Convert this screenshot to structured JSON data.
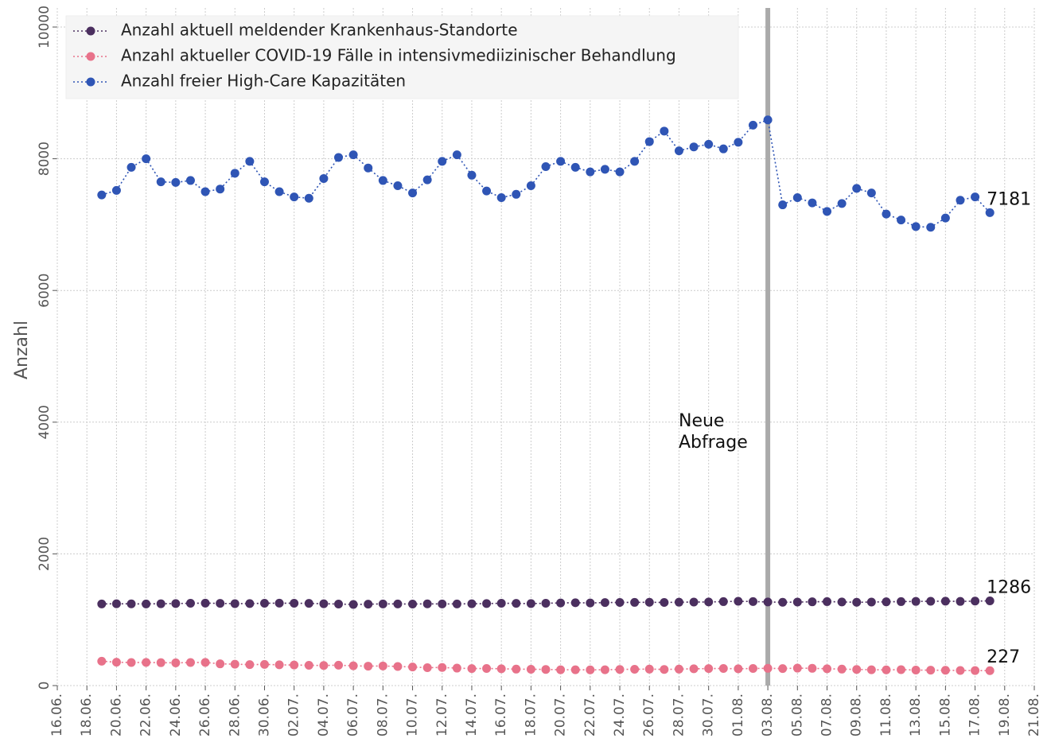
{
  "chart_data": {
    "type": "line",
    "ylabel": "Anzahl",
    "x": [
      "19.06.",
      "20.06.",
      "21.06.",
      "22.06.",
      "23.06.",
      "24.06.",
      "25.06.",
      "26.06.",
      "27.06.",
      "28.06.",
      "29.06.",
      "30.06.",
      "01.07.",
      "02.07.",
      "03.07.",
      "04.07.",
      "05.07.",
      "06.07.",
      "07.07.",
      "08.07.",
      "09.07.",
      "10.07.",
      "11.07.",
      "12.07.",
      "13.07.",
      "14.07.",
      "15.07.",
      "16.07.",
      "17.07.",
      "18.07.",
      "19.07.",
      "20.07.",
      "21.07.",
      "22.07.",
      "23.07.",
      "24.07.",
      "25.07.",
      "26.07.",
      "27.07.",
      "28.07.",
      "29.07.",
      "30.07.",
      "31.07.",
      "01.08.",
      "02.08.",
      "03.08.",
      "04.08.",
      "05.08.",
      "06.08.",
      "07.08.",
      "08.08.",
      "09.08.",
      "10.08.",
      "11.08.",
      "12.08.",
      "13.08.",
      "14.08.",
      "15.08.",
      "16.08.",
      "17.08.",
      "18.08."
    ],
    "series": [
      {
        "name": "Anzahl aktuell meldender Krankenhaus-Standorte",
        "color": "#4b2f5f",
        "values": [
          1240,
          1242,
          1241,
          1240,
          1243,
          1245,
          1250,
          1252,
          1248,
          1244,
          1245,
          1250,
          1252,
          1250,
          1248,
          1243,
          1238,
          1232,
          1236,
          1240,
          1240,
          1238,
          1241,
          1239,
          1240,
          1242,
          1245,
          1250,
          1248,
          1245,
          1250,
          1255,
          1258,
          1255,
          1260,
          1262,
          1263,
          1265,
          1262,
          1266,
          1268,
          1270,
          1275,
          1280,
          1276,
          1270,
          1265,
          1268,
          1272,
          1275,
          1270,
          1265,
          1268,
          1272,
          1275,
          1278,
          1280,
          1282,
          1278,
          1283,
          1286
        ]
      },
      {
        "name": "Anzahl aktueller COVID-19 Fälle in intensivmediizinischer Behandlung",
        "color": "#e8728a",
        "values": [
          370,
          355,
          350,
          352,
          348,
          345,
          350,
          352,
          330,
          325,
          318,
          322,
          315,
          312,
          308,
          305,
          310,
          300,
          295,
          298,
          290,
          282,
          272,
          275,
          265,
          258,
          260,
          255,
          250,
          248,
          245,
          240,
          240,
          238,
          240,
          245,
          248,
          250,
          245,
          250,
          255,
          258,
          260,
          255,
          260,
          262,
          258,
          265,
          262,
          255,
          250,
          245,
          240,
          238,
          242,
          236,
          234,
          232,
          230,
          228,
          227
        ]
      },
      {
        "name": "Anzahl freier High-Care Kapazitäten",
        "color": "#2f55b5",
        "values": [
          7450,
          7520,
          7870,
          8000,
          7650,
          7640,
          7670,
          7500,
          7540,
          7780,
          7960,
          7650,
          7500,
          7420,
          7400,
          7700,
          8020,
          8060,
          7860,
          7670,
          7590,
          7480,
          7680,
          7960,
          8060,
          7750,
          7510,
          7410,
          7460,
          7590,
          7880,
          7960,
          7870,
          7800,
          7840,
          7800,
          7960,
          8260,
          8420,
          8120,
          8180,
          8220,
          8150,
          8250,
          8510,
          8590,
          7300,
          7410,
          7330,
          7200,
          7320,
          7550,
          7480,
          7160,
          7070,
          6970,
          6960,
          7100,
          7370,
          7420,
          7181
        ]
      }
    ],
    "xlim": [
      "16.06.",
      "21.08."
    ],
    "xticks": [
      "16.06.",
      "18.06.",
      "20.06.",
      "22.06.",
      "24.06.",
      "26.06.",
      "28.06.",
      "30.06.",
      "02.07.",
      "04.07.",
      "06.07.",
      "08.07.",
      "10.07.",
      "12.07.",
      "14.07.",
      "16.07.",
      "18.07.",
      "20.07.",
      "22.07.",
      "24.07.",
      "26.07.",
      "28.07.",
      "30.07.",
      "01.08.",
      "03.08.",
      "05.08.",
      "07.08.",
      "09.08.",
      "11.08.",
      "13.08.",
      "15.08.",
      "17.08.",
      "19.08.",
      "21.08."
    ],
    "ylim": [
      0,
      10000
    ],
    "yticks": [
      0,
      2000,
      4000,
      6000,
      8000,
      10000
    ],
    "grid": true,
    "legend": "upper left",
    "vline": {
      "x": "03.08.",
      "label": [
        "Neue",
        "Abfrage"
      ],
      "color": "#aaaaaa"
    }
  }
}
